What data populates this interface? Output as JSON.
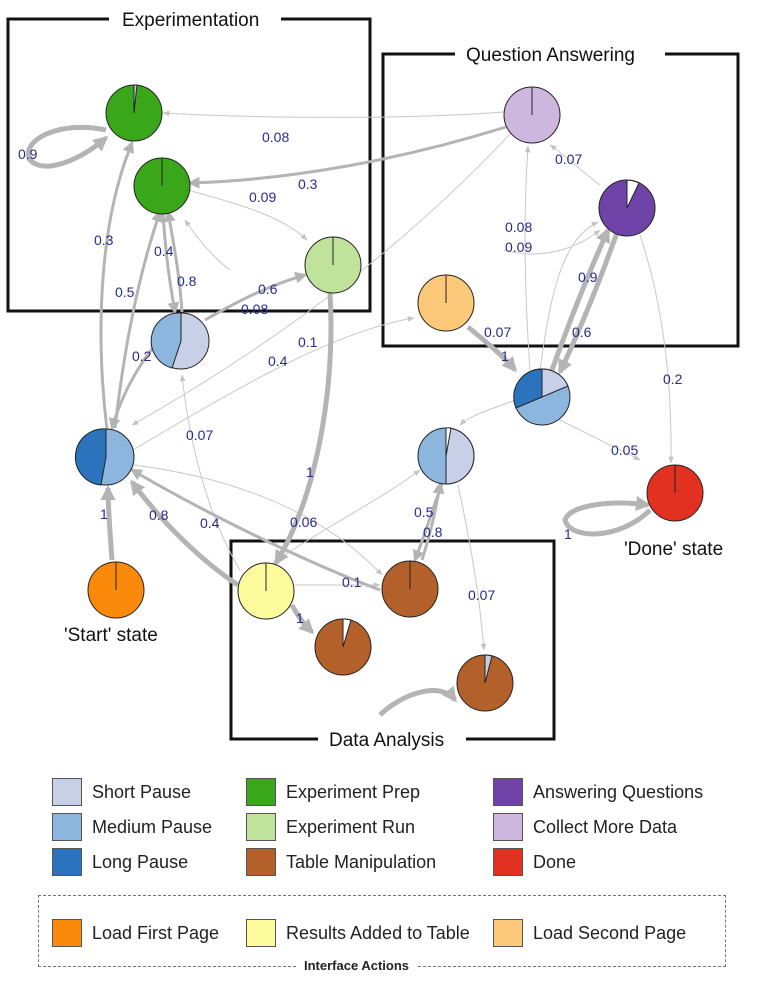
{
  "regions": {
    "experimentation": "Experimentation",
    "question_answering": "Question Answering",
    "data_analysis": "Data Analysis"
  },
  "state_labels": {
    "start": "'Start' state",
    "done": "'Done' state"
  },
  "edge_labels": {
    "e_exp1_self": "0.9",
    "e_qa_exp1": "0.08",
    "e_qa_exp2": "0.3",
    "e_exp2_run": "0.09",
    "e_med_exp1": "0.3",
    "e_a_exp2": "0.5",
    "e_exp2_b": "0.4",
    "e_b_exp2": "0.8",
    "e_b_run": "0.6",
    "e_run_b": "0.08",
    "e_b_a": "0.2",
    "e_qa_a": "0.1",
    "e_a_load2": "0.4",
    "e_a_load2b": "0.07",
    "e_load2_c": "1",
    "e_ans_qa": "0.07",
    "e_c_qa": "0.08",
    "e_c_ans": "0.09",
    "e_c_ans2": "0.9",
    "e_ans_c": "0.6",
    "e_ans_done": "0.2",
    "e_c_done": "0.05",
    "e_done_self": "1",
    "e_b_yellow": "0.07",
    "e_run_yellow": "1",
    "e_start_a": "1",
    "e_yellow_a": "0.8",
    "e_table_a": "0.4",
    "e_yellow_d": "0.06",
    "e_table_d": "0.5",
    "e_d_table": "0.8",
    "e_yellow_table": "0.1",
    "e_yellow_table2": "1",
    "e_d_table3": "0.07"
  },
  "legend": [
    {
      "label": "Short Pause",
      "color": "#c8d0e8"
    },
    {
      "label": "Experiment Prep",
      "color": "#3aa619"
    },
    {
      "label": "Answering Questions",
      "color": "#7043a8"
    },
    {
      "label": "Medium Pause",
      "color": "#8db6de"
    },
    {
      "label": "Experiment Run",
      "color": "#bfe39a"
    },
    {
      "label": "Collect More Data",
      "color": "#cdb7df"
    },
    {
      "label": "Long Pause",
      "color": "#2b74bd"
    },
    {
      "label": "Table Manipulation",
      "color": "#b4602a"
    },
    {
      "label": "Done",
      "color": "#e33121"
    }
  ],
  "actions": {
    "title": "Interface Actions",
    "items": [
      {
        "label": "Load First Page",
        "color": "#fb8a0b"
      },
      {
        "label": "Results Added to Table",
        "color": "#fdfc9c"
      },
      {
        "label": "Load Second Page",
        "color": "#fcc97a"
      }
    ]
  }
}
